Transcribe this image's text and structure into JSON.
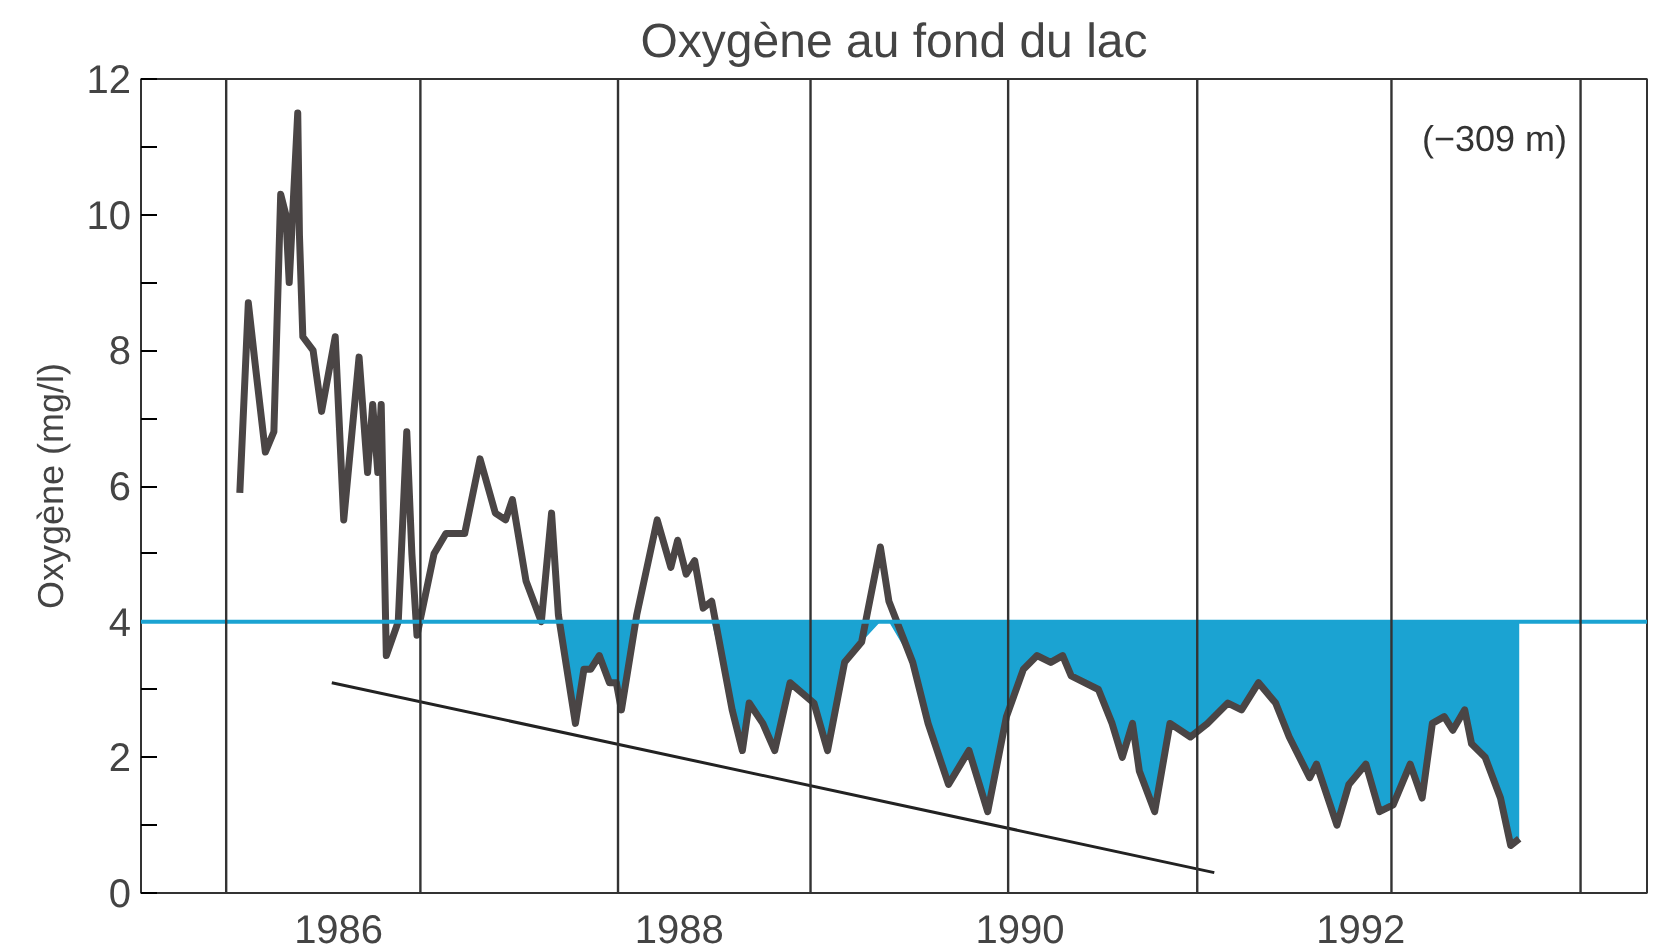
{
  "chart_data": {
    "type": "line",
    "title": "Oxygène au fond du lac",
    "ylabel": "Oxygène (mg/l)",
    "annotations": [
      "(−309 m)"
    ],
    "xlim": [
      1984.84,
      1993.68
    ],
    "xticks": [
      1986,
      1988,
      1990,
      1992
    ],
    "ylim": [
      0,
      12
    ],
    "yticks": [
      0,
      {
        "value": 1,
        "label": null
      },
      2,
      {
        "value": 3,
        "label": null
      },
      4,
      {
        "value": 5,
        "label": null
      },
      6,
      {
        "value": 7,
        "label": null
      },
      8,
      {
        "value": 9,
        "label": null
      },
      10,
      {
        "value": 11,
        "label": null
      },
      12
    ],
    "grid": false,
    "marker": "none",
    "line_style": "solid",
    "series": [
      {
        "color": "#4a4545",
        "x": [
          1985.42,
          1985.47,
          1985.51,
          1985.57,
          1985.62,
          1985.66,
          1985.69,
          1985.71,
          1985.76,
          1985.77,
          1985.79,
          1985.85,
          1985.9,
          1985.98,
          1986.03,
          1986.12,
          1986.17,
          1986.2,
          1986.23,
          1986.25,
          1986.28,
          1986.35,
          1986.4,
          1986.43,
          1986.46,
          1986.56,
          1986.63,
          1986.74,
          1986.83,
          1986.92,
          1986.98,
          1987.02,
          1987.1,
          1987.19,
          1987.25,
          1987.29,
          1987.39,
          1987.44,
          1987.48,
          1987.53,
          1987.59,
          1987.63,
          1987.66,
          1987.75,
          1987.87,
          1987.95,
          1987.99,
          1988.04,
          1988.09,
          1988.14,
          1988.19,
          1988.31,
          1988.37,
          1988.41,
          1988.49,
          1988.56,
          1988.65,
          1988.79,
          1988.87,
          1988.97,
          1989.07,
          1989.18,
          1989.23,
          1989.37,
          1989.46,
          1989.58,
          1989.7,
          1989.81,
          1989.92,
          1990.02,
          1990.1,
          1990.18,
          1990.25,
          1990.3,
          1990.46,
          1990.54,
          1990.6,
          1990.66,
          1990.7,
          1990.79,
          1990.88,
          1991.0,
          1991.1,
          1991.22,
          1991.3,
          1991.4,
          1991.5,
          1991.58,
          1991.7,
          1991.74,
          1991.86,
          1991.93,
          1992.03,
          1992.11,
          1992.19,
          1992.29,
          1992.36,
          1992.42,
          1992.49,
          1992.54,
          1992.61,
          1992.65,
          1992.73,
          1992.82,
          1992.88,
          1992.93
        ],
        "values": [
          5.9,
          8.7,
          7.8,
          6.5,
          6.8,
          10.3,
          10.0,
          9.0,
          11.5,
          9.7,
          8.2,
          8.0,
          7.1,
          8.2,
          5.5,
          7.9,
          6.2,
          7.2,
          6.2,
          7.2,
          3.5,
          4.0,
          6.8,
          5.0,
          3.8,
          5.0,
          5.3,
          5.3,
          6.4,
          5.6,
          5.5,
          5.8,
          4.6,
          4.0,
          5.6,
          4.1,
          2.5,
          3.3,
          3.3,
          3.5,
          3.1,
          3.1,
          2.7,
          4.1,
          5.5,
          4.8,
          5.2,
          4.7,
          4.9,
          4.2,
          4.3,
          2.7,
          2.1,
          2.8,
          2.5,
          2.1,
          3.1,
          2.8,
          2.1,
          3.4,
          3.7,
          5.1,
          4.3,
          3.4,
          2.5,
          1.6,
          2.1,
          1.2,
          2.6,
          3.3,
          3.5,
          3.4,
          3.5,
          3.2,
          3.0,
          2.5,
          2.0,
          2.5,
          1.8,
          1.2,
          2.5,
          2.3,
          2.5,
          2.8,
          2.7,
          3.1,
          2.8,
          2.3,
          1.7,
          1.9,
          1.0,
          1.6,
          1.9,
          1.2,
          1.3,
          1.9,
          1.4,
          2.5,
          2.6,
          2.4,
          2.7,
          2.2,
          2.0,
          1.4,
          0.7,
          0.8
        ],
        "lower": [
          null,
          null,
          null,
          null,
          null,
          null,
          null,
          null,
          null,
          null,
          null,
          null,
          null,
          null,
          null,
          null,
          null,
          null,
          null,
          null,
          null,
          null,
          null,
          null,
          null,
          null,
          null,
          null,
          null,
          null,
          null,
          null,
          null,
          null,
          null,
          4.0,
          2.5,
          3.3,
          3.3,
          3.5,
          3.1,
          3.1,
          2.7,
          4.0,
          4.0,
          4.0,
          4.0,
          4.0,
          4.0,
          4.0,
          4.0,
          2.7,
          2.1,
          2.8,
          2.5,
          2.1,
          3.1,
          2.8,
          2.1,
          3.4,
          3.7,
          4.0,
          4.0,
          3.4,
          2.5,
          1.6,
          2.1,
          1.2,
          2.6,
          3.3,
          3.5,
          3.4,
          3.5,
          3.2,
          3.0,
          2.5,
          2.0,
          2.5,
          1.8,
          1.2,
          2.5,
          2.3,
          2.5,
          2.8,
          2.7,
          3.1,
          2.8,
          2.3,
          1.7,
          1.9,
          1.0,
          1.6,
          1.9,
          1.2,
          1.3,
          1.9,
          1.4,
          2.5,
          2.6,
          2.4,
          2.7,
          2.2,
          2.0,
          1.4,
          0.7,
          0.8
        ],
        "upper": [
          null,
          null,
          null,
          null,
          null,
          null,
          null,
          null,
          null,
          null,
          null,
          null,
          null,
          null,
          null,
          null,
          null,
          null,
          null,
          null,
          null,
          null,
          null,
          null,
          null,
          null,
          null,
          null,
          null,
          null,
          null,
          null,
          null,
          null,
          null,
          4,
          4,
          4,
          4,
          4,
          4,
          4,
          4,
          4,
          4,
          4,
          4,
          4,
          4,
          4,
          4,
          4,
          4,
          4,
          4,
          4,
          4,
          4,
          4,
          4,
          4,
          4,
          4,
          4,
          4,
          4,
          4,
          4,
          4,
          4,
          4,
          4,
          4,
          4,
          4,
          4,
          4,
          4,
          4,
          4,
          4,
          4,
          4,
          4,
          4,
          4,
          4,
          4,
          4,
          4,
          4,
          4,
          4,
          4,
          4,
          4,
          4,
          4,
          4,
          4,
          4,
          4,
          4,
          4,
          4,
          4
        ]
      },
      {
        "color": "#222222",
        "x": [
          1985.96,
          1991.14
        ],
        "values": [
          3.1,
          0.3
        ]
      }
    ],
    "ref_lines": [
      {
        "axis": "y",
        "value": 4,
        "color": "#1ba3d2"
      },
      {
        "axis": "x",
        "value": 1985.34,
        "color": "#333333"
      },
      {
        "axis": "x",
        "value": 1986.48,
        "color": "#333333"
      },
      {
        "axis": "x",
        "value": 1987.64,
        "color": "#333333"
      },
      {
        "axis": "x",
        "value": 1988.77,
        "color": "#333333"
      },
      {
        "axis": "x",
        "value": 1989.93,
        "color": "#333333"
      },
      {
        "axis": "x",
        "value": 1991.04,
        "color": "#333333"
      },
      {
        "axis": "x",
        "value": 1992.18,
        "color": "#333333"
      },
      {
        "axis": "x",
        "value": 1993.29,
        "color": "#333333"
      }
    ]
  }
}
